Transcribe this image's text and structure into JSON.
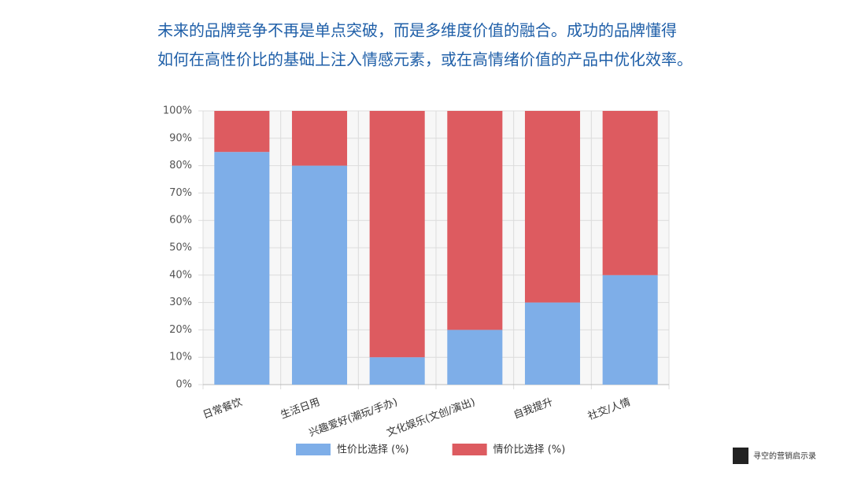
{
  "header": {
    "lines": [
      "未来的品牌竞争不再是单点突破，而是多维度价值的融合。成功的品牌懂得",
      "如何在高性价比的基础上注入情感元素，或在高情绪价值的产品中优化效率。"
    ]
  },
  "watermark": {
    "text": "寻空的营销启示录"
  },
  "chart_data": {
    "type": "stacked_bar",
    "categories": [
      "日常餐饮",
      "生活日用",
      "兴趣爱好(潮玩/手办)",
      "文化娱乐(文创/演出)",
      "自我提升",
      "社交/人情"
    ],
    "series": [
      {
        "name": "性价比选择 (%)",
        "color": "#7eaee8",
        "values": [
          85,
          80,
          10,
          20,
          30,
          40
        ]
      },
      {
        "name": "情价比选择 (%)",
        "color": "#dd5b60",
        "values": [
          15,
          20,
          90,
          80,
          70,
          60
        ]
      }
    ],
    "ylim": [
      0,
      100
    ],
    "yticks": [
      {
        "value": 0,
        "label": "0%"
      },
      {
        "value": 10,
        "label": "10%"
      },
      {
        "value": 20,
        "label": "20%"
      },
      {
        "value": 30,
        "label": "30%"
      },
      {
        "value": 40,
        "label": "40%"
      },
      {
        "value": 50,
        "label": "50%"
      },
      {
        "value": 60,
        "label": "60%"
      },
      {
        "value": 70,
        "label": "70%"
      },
      {
        "value": 80,
        "label": "80%"
      },
      {
        "value": 90,
        "label": "90%"
      },
      {
        "value": 100,
        "label": "100%"
      }
    ],
    "grid": true,
    "legend": "bottom"
  }
}
